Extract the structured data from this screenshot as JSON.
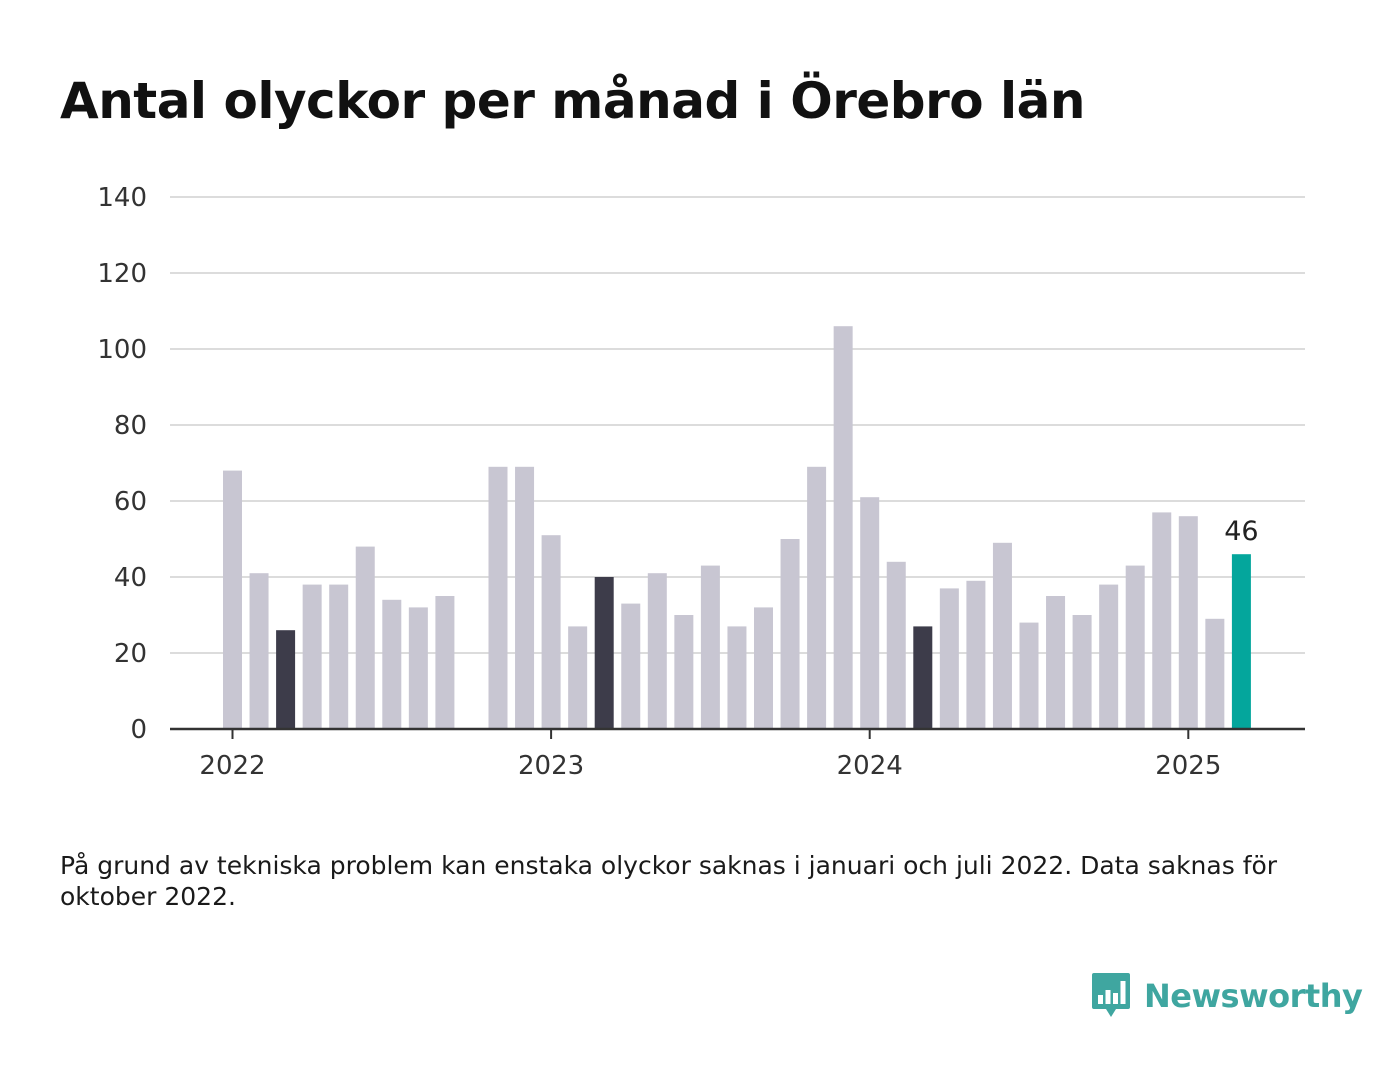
{
  "title": "Antal olyckor per månad i Örebro län",
  "footnote": "På grund av tekniska problem kan enstaka olyckor saknas i januari och juli 2022. Data saknas för oktober 2022.",
  "brand": {
    "name": "Newsworthy",
    "icon": "newsworthy-logo-icon",
    "color": "#3fa6a0"
  },
  "colors": {
    "default": "#c8c6d2",
    "highlight": "#3d3c4a",
    "latest": "#04a69c",
    "grid": "#dcdcdc",
    "axis": "#333333"
  },
  "chart_data": {
    "type": "bar",
    "categories": [
      "2022-01",
      "2022-02",
      "2022-03",
      "2022-04",
      "2022-05",
      "2022-06",
      "2022-07",
      "2022-08",
      "2022-09",
      "2022-10",
      "2022-11",
      "2022-12",
      "2023-01",
      "2023-02",
      "2023-03",
      "2023-04",
      "2023-05",
      "2023-06",
      "2023-07",
      "2023-08",
      "2023-09",
      "2023-10",
      "2023-11",
      "2023-12",
      "2024-01",
      "2024-02",
      "2024-03",
      "2024-04",
      "2024-05",
      "2024-06",
      "2024-07",
      "2024-08",
      "2024-09",
      "2024-10",
      "2024-11",
      "2024-12",
      "2025-01",
      "2025-02",
      "2025-03"
    ],
    "values": [
      68,
      41,
      26,
      38,
      38,
      48,
      34,
      32,
      35,
      null,
      69,
      69,
      51,
      27,
      40,
      33,
      41,
      30,
      43,
      27,
      32,
      50,
      69,
      106,
      61,
      44,
      27,
      37,
      39,
      49,
      28,
      35,
      30,
      38,
      43,
      57,
      56,
      29,
      46
    ],
    "highlighted": [
      "2022-03",
      "2023-03",
      "2024-03"
    ],
    "latest": "2025-03",
    "latest_label": "46",
    "ylim": [
      0,
      140
    ],
    "yticks": [
      0,
      20,
      40,
      60,
      80,
      100,
      120,
      140
    ],
    "xticks": [
      {
        "label": "2022",
        "at": "2022-01"
      },
      {
        "label": "2023",
        "at": "2023-01"
      },
      {
        "label": "2024",
        "at": "2024-01"
      },
      {
        "label": "2025",
        "at": "2025-01"
      }
    ],
    "grid": true,
    "legend": "none"
  }
}
